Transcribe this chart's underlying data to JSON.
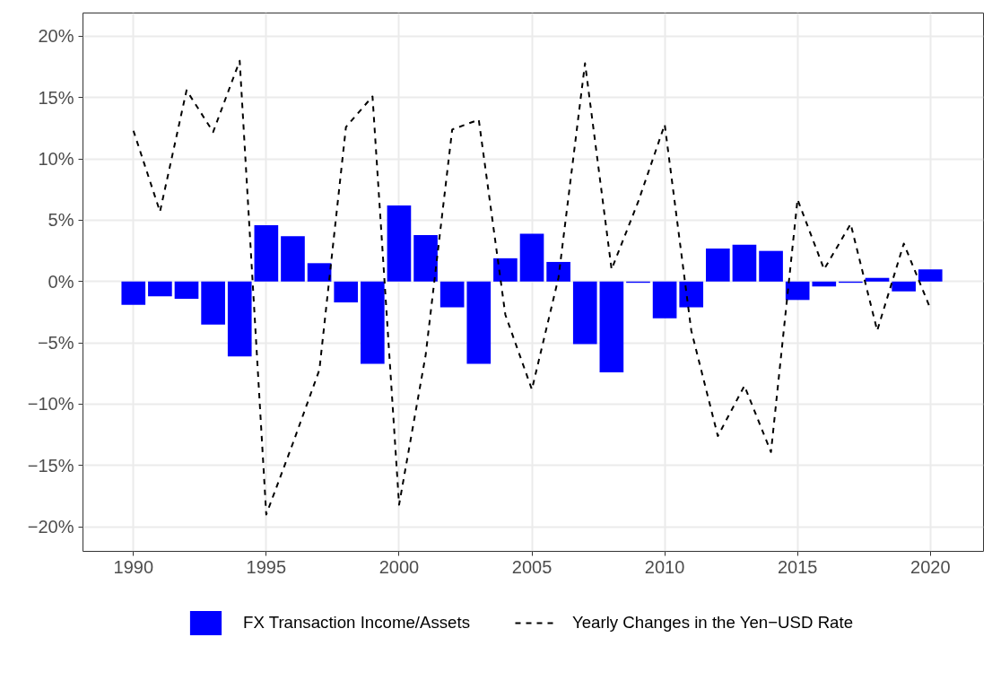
{
  "chart_data": {
    "type": "bar",
    "x": [
      1990,
      1991,
      1992,
      1993,
      1994,
      1995,
      1996,
      1997,
      1998,
      1999,
      2000,
      2001,
      2002,
      2003,
      2004,
      2005,
      2006,
      2007,
      2008,
      2009,
      2010,
      2011,
      2012,
      2013,
      2014,
      2015,
      2016,
      2017,
      2018,
      2019,
      2020
    ],
    "series": [
      {
        "name": "FX Transaction Income/Assets",
        "type": "bar",
        "color": "#0000ff",
        "values": [
          -1.9,
          -1.2,
          -1.4,
          -3.5,
          -6.1,
          4.6,
          3.7,
          1.5,
          -1.7,
          -6.7,
          6.2,
          3.8,
          -2.1,
          -6.7,
          1.9,
          3.9,
          1.6,
          -5.1,
          -7.4,
          -0.1,
          -3.0,
          -2.1,
          2.7,
          3.0,
          2.5,
          -1.5,
          -0.4,
          -0.1,
          0.3,
          -0.8,
          1.0
        ]
      },
      {
        "name": "Yearly Changes in the Yen−USD Rate",
        "type": "line",
        "color": "#000000",
        "line_style": "dashed",
        "values": [
          12.3,
          5.7,
          15.6,
          12.2,
          18.0,
          -19.0,
          -13.2,
          -7.2,
          12.6,
          15.1,
          -18.2,
          -6.0,
          12.4,
          13.2,
          -2.7,
          -8.8,
          0.3,
          17.8,
          1.0,
          6.5,
          12.8,
          -4.0,
          -12.6,
          -8.5,
          -13.9,
          6.7,
          1.0,
          4.7,
          -4.0,
          3.1,
          -2.2
        ]
      }
    ],
    "xlim": [
      1988.1,
      2022.0
    ],
    "xticks": [
      1990,
      1995,
      2000,
      2005,
      2010,
      2015,
      2020
    ],
    "ylim": [
      -22.0,
      21.9
    ],
    "yticks": [
      {
        "value": -20,
        "label": "−20%"
      },
      {
        "value": -15,
        "label": "−15%"
      },
      {
        "value": -10,
        "label": "−10%"
      },
      {
        "value": -5,
        "label": "−5%"
      },
      {
        "value": 0,
        "label": "0%"
      },
      {
        "value": 5,
        "label": "5%"
      },
      {
        "value": 10,
        "label": "10%"
      },
      {
        "value": 15,
        "label": "15%"
      },
      {
        "value": 20,
        "label": "20%"
      }
    ],
    "grid": true,
    "legend": "bottom"
  }
}
